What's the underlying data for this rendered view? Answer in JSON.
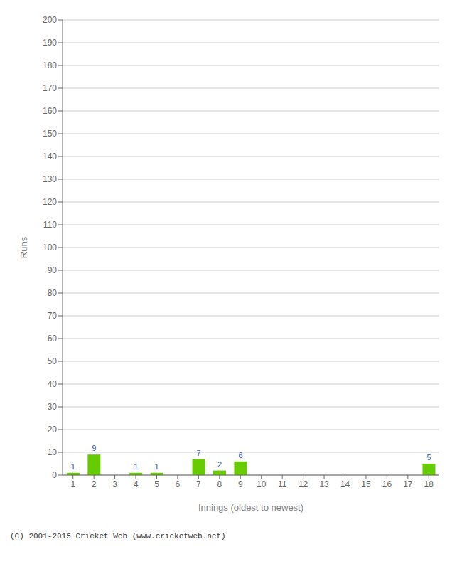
{
  "chart_data": {
    "type": "bar",
    "categories": [
      "1",
      "2",
      "3",
      "4",
      "5",
      "6",
      "7",
      "8",
      "9",
      "10",
      "11",
      "12",
      "13",
      "14",
      "15",
      "16",
      "17",
      "18"
    ],
    "values": [
      1,
      9,
      0,
      1,
      1,
      0,
      7,
      2,
      6,
      0,
      0,
      0,
      0,
      0,
      0,
      0,
      0,
      5
    ],
    "color": "#66cc00",
    "xlabel": "Innings (oldest to newest)",
    "ylabel": "Runs",
    "ylim": [
      0,
      200
    ],
    "yticks": [
      0,
      10,
      20,
      30,
      40,
      50,
      60,
      70,
      80,
      90,
      100,
      110,
      120,
      130,
      140,
      150,
      160,
      170,
      180,
      190,
      200
    ],
    "grid": true,
    "data_labels": true,
    "annotations": [
      "(C) 2001-2015 Cricket Web (www.cricketweb.net)"
    ]
  }
}
